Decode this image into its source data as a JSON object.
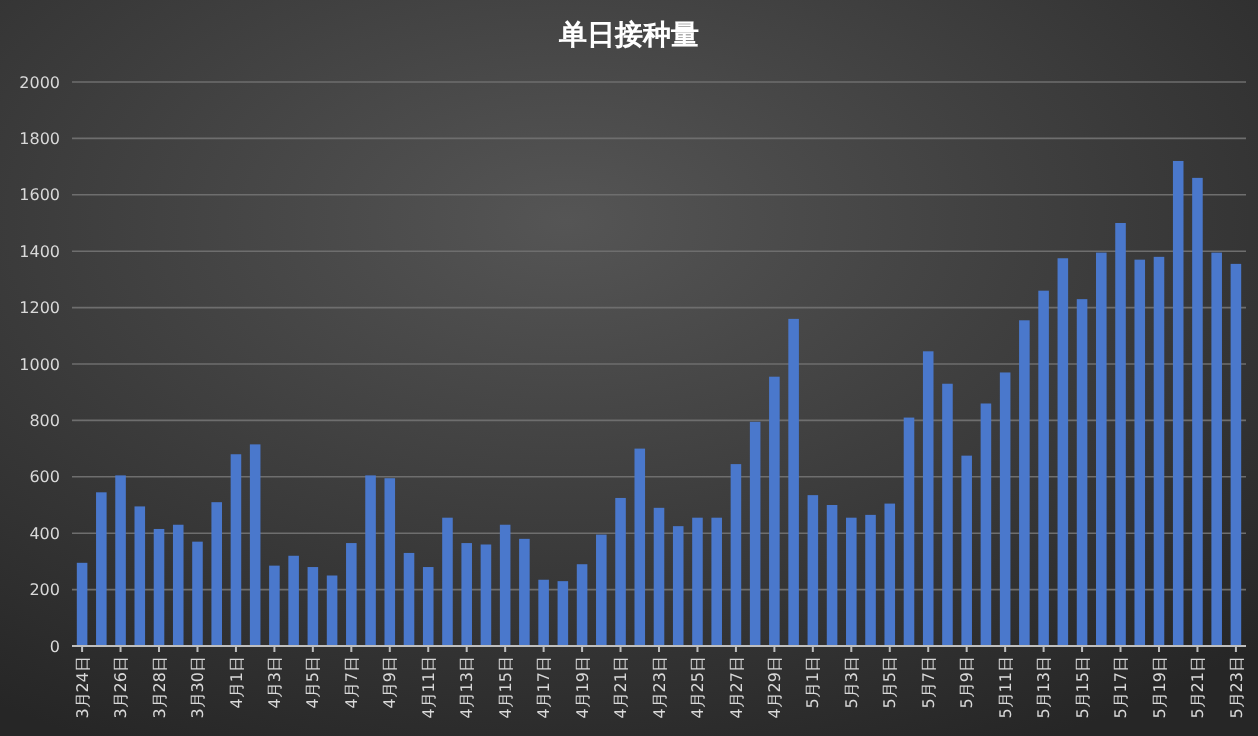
{
  "chart_data": {
    "type": "bar",
    "title": "单日接种量",
    "categories": [
      "3月24日",
      null,
      "3月26日",
      null,
      "3月28日",
      null,
      "3月30日",
      null,
      "4月1日",
      null,
      "4月3日",
      null,
      "4月5日",
      null,
      "4月7日",
      null,
      "4月9日",
      null,
      "4月11日",
      null,
      "4月13日",
      null,
      "4月15日",
      null,
      "4月17日",
      null,
      "4月19日",
      null,
      "4月21日",
      null,
      "4月23日",
      null,
      "4月25日",
      null,
      "4月27日",
      null,
      "4月29日",
      null,
      "5月1日",
      null,
      "5月3日",
      null,
      "5月5日",
      null,
      "5月7日",
      null,
      "5月9日",
      null,
      "5月11日",
      null,
      "5月13日",
      null,
      "5月15日",
      null,
      "5月17日",
      null,
      "5月19日",
      null,
      "5月21日",
      null,
      "5月23日"
    ],
    "values": [
      295,
      545,
      605,
      495,
      415,
      430,
      370,
      510,
      680,
      715,
      285,
      320,
      280,
      250,
      365,
      605,
      595,
      330,
      280,
      455,
      365,
      360,
      430,
      380,
      235,
      230,
      290,
      395,
      525,
      700,
      490,
      425,
      455,
      455,
      645,
      795,
      955,
      1160,
      535,
      500,
      455,
      465,
      505,
      810,
      1045,
      930,
      675,
      860,
      970,
      1155,
      1260,
      1375,
      1230,
      1395,
      1500,
      1370,
      1380,
      1720,
      1660,
      1395,
      1355
    ],
    "color": "#4a78cc",
    "ylim": [
      0,
      2000
    ],
    "yticks": [
      0,
      200,
      400,
      600,
      800,
      1000,
      1200,
      1400,
      1600,
      1800,
      2000
    ],
    "grid": "y"
  }
}
